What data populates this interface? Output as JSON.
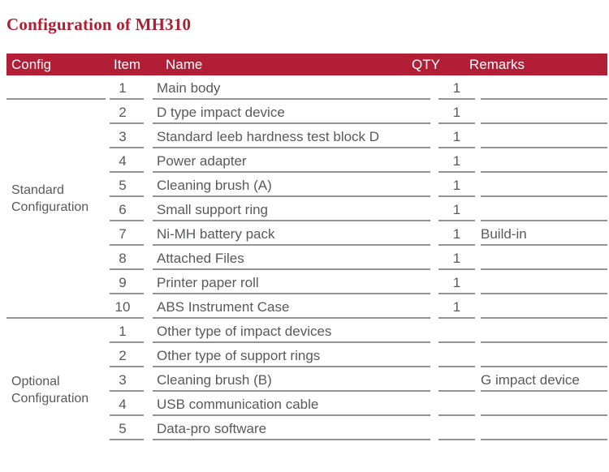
{
  "page": {
    "title": "Configuration of MH310"
  },
  "colors": {
    "accent_red": "#B21E35",
    "title_red": "#B01E32",
    "text_gray": "#58595B",
    "line_gray": "#939393",
    "header_text": "#FFFFFF"
  },
  "table": {
    "headers": {
      "config": "Config",
      "item": "Item",
      "name": "Name",
      "qty": "QTY",
      "remarks": "Remarks"
    },
    "groups": [
      {
        "label": "Standard Configuration",
        "label_lines": [
          "Standard",
          "Configuration"
        ],
        "rows": [
          {
            "item": "1",
            "name": "Main body",
            "qty": "1",
            "remarks": ""
          },
          {
            "item": "2",
            "name": "D type impact device",
            "qty": "1",
            "remarks": ""
          },
          {
            "item": "3",
            "name": "Standard leeb hardness test block D",
            "qty": "1",
            "remarks": ""
          },
          {
            "item": "4",
            "name": "Power adapter",
            "qty": "1",
            "remarks": ""
          },
          {
            "item": "5",
            "name": "Cleaning brush (A)",
            "qty": "1",
            "remarks": ""
          },
          {
            "item": "6",
            "name": "Small support ring",
            "qty": "1",
            "remarks": ""
          },
          {
            "item": "7",
            "name": "Ni-MH battery pack",
            "qty": "1",
            "remarks": "Build-in"
          },
          {
            "item": "8",
            "name": "Attached Files",
            "qty": "1",
            "remarks": ""
          },
          {
            "item": "9",
            "name": "Printer paper roll",
            "qty": "1",
            "remarks": ""
          },
          {
            "item": "10",
            "name": "ABS Instrument Case",
            "qty": "1",
            "remarks": ""
          }
        ]
      },
      {
        "label": "Optional Configuration",
        "label_lines": [
          "Optional",
          "Configuration"
        ],
        "rows": [
          {
            "item": "1",
            "name": "Other type of impact devices",
            "qty": "",
            "remarks": ""
          },
          {
            "item": "2",
            "name": "Other type of support rings",
            "qty": "",
            "remarks": ""
          },
          {
            "item": "3",
            "name": "Cleaning brush (B)",
            "qty": "",
            "remarks": "G impact device"
          },
          {
            "item": "4",
            "name": "USB communication cable",
            "qty": "",
            "remarks": ""
          },
          {
            "item": "5",
            "name": "Data-pro software",
            "qty": "",
            "remarks": ""
          }
        ]
      }
    ]
  }
}
